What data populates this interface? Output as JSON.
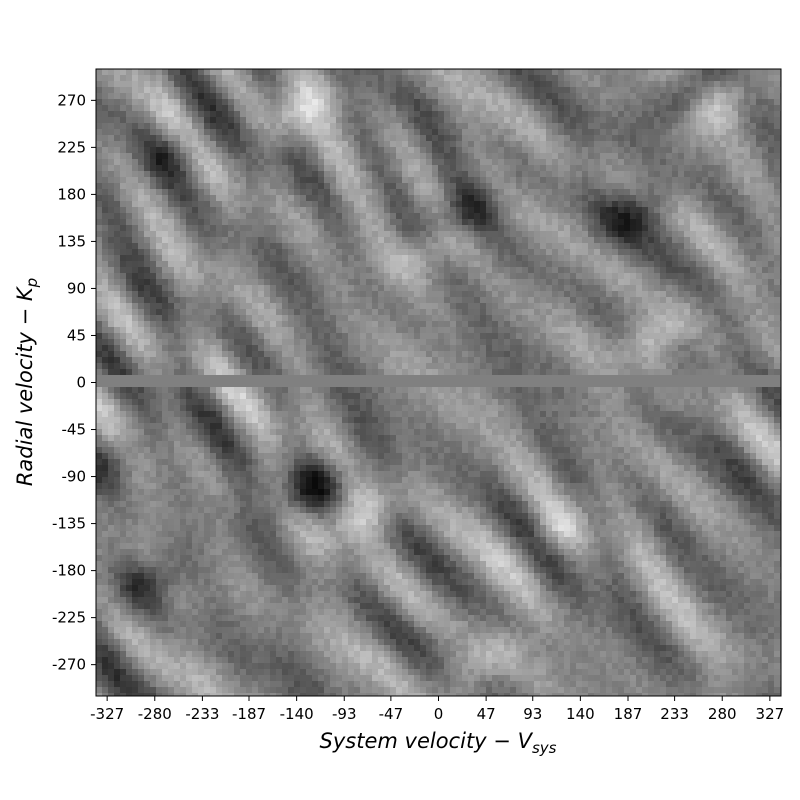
{
  "chart_data": {
    "type": "heatmap",
    "title": "",
    "colormap": "gray",
    "xlabel_text": "System velocity",
    "xlabel_symbol": "V",
    "xlabel_sub": "sys",
    "ylabel_text": "Radial velocity",
    "ylabel_symbol": "K",
    "ylabel_sub": "p",
    "xlim": [
      -338,
      338
    ],
    "ylim": [
      -300,
      300
    ],
    "x_ticks": [
      -327,
      -280,
      -233,
      -187,
      -140,
      -93,
      -47,
      0,
      47,
      93,
      140,
      187,
      233,
      280,
      327
    ],
    "y_ticks": [
      270,
      225,
      180,
      135,
      90,
      45,
      0,
      -45,
      -90,
      -135,
      -180,
      -225,
      -270
    ],
    "blob_features": [
      {
        "x": -125,
        "y": -100,
        "intensity": -0.95,
        "note": "dark streak"
      },
      {
        "x": -80,
        "y": -130,
        "intensity": 0.8,
        "note": "bright streak"
      },
      {
        "x": 25,
        "y": 160,
        "intensity": -0.85
      },
      {
        "x": -5,
        "y": 130,
        "intensity": 0.75
      },
      {
        "x": -140,
        "y": 260,
        "intensity": 0.7
      },
      {
        "x": 240,
        "y": 270,
        "intensity": -0.8
      },
      {
        "x": 190,
        "y": 160,
        "intensity": -0.75
      },
      {
        "x": 215,
        "y": 45,
        "intensity": 0.7
      },
      {
        "x": -285,
        "y": -190,
        "intensity": -0.7
      },
      {
        "x": 40,
        "y": -270,
        "intensity": 0.6
      },
      {
        "x": 280,
        "y": 270,
        "intensity": 0.75
      },
      {
        "x": -330,
        "y": -80,
        "intensity": -0.6
      },
      {
        "x": -260,
        "y": 220,
        "intensity": -0.55
      },
      {
        "x": 120,
        "y": -140,
        "intensity": 0.5
      }
    ],
    "zero_row_flat": true,
    "grid": false,
    "legend": "none"
  }
}
